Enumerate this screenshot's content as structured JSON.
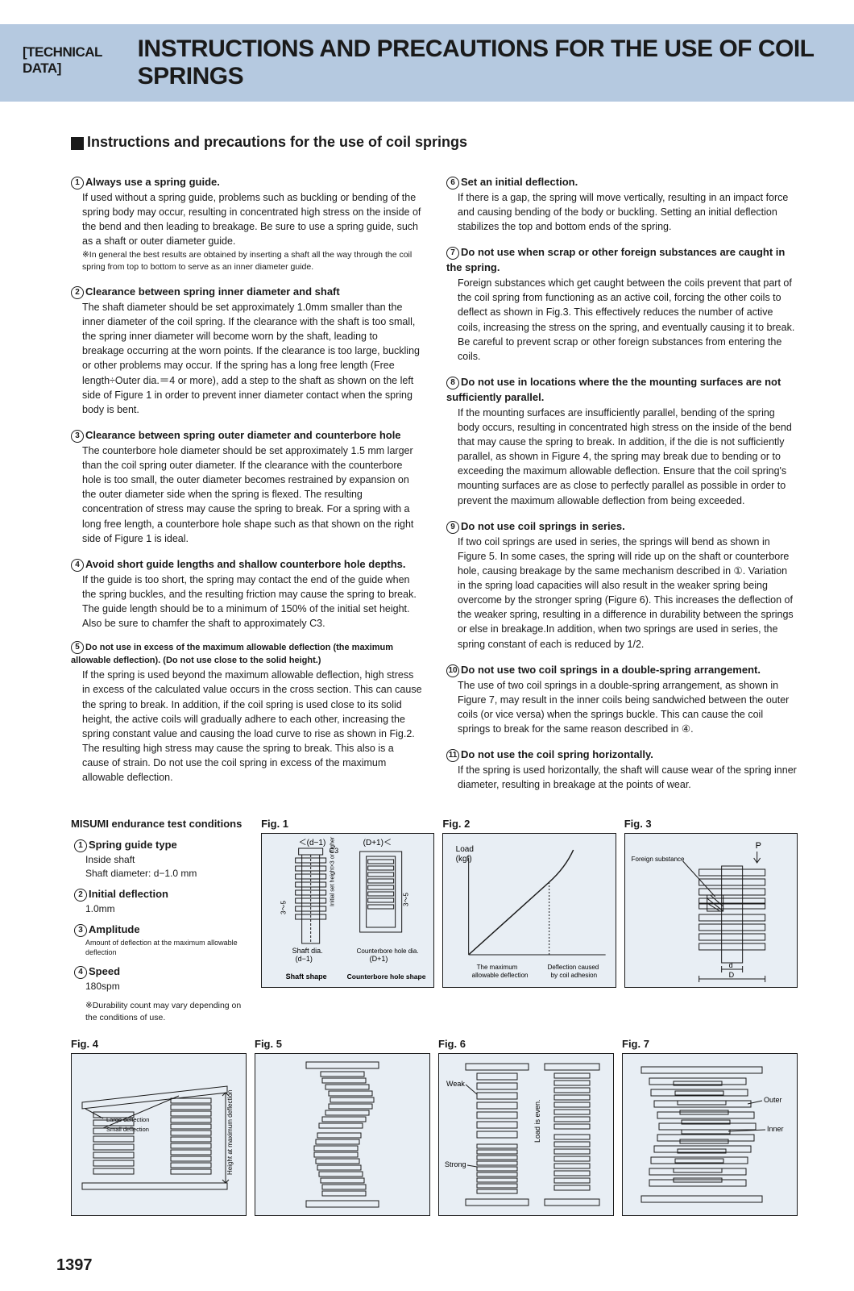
{
  "header": {
    "tag": "[TECHNICAL DATA]",
    "title": "INSTRUCTIONS AND PRECAUTIONS FOR THE USE OF COIL SPRINGS"
  },
  "section_heading": "Instructions and precautions for the use of coil springs",
  "left": [
    {
      "num": "1",
      "title": "Always use a spring guide.",
      "body": "If used without a spring guide, problems such as buckling or bending of the spring body may occur, resulting in concentrated high stress on the inside of the bend and then leading to breakage. Be sure to use a spring guide, such as a shaft or outer diameter guide.",
      "note": "※In general the best results are obtained by inserting a shaft all the way through the coil spring from top to bottom to serve as an inner diameter guide."
    },
    {
      "num": "2",
      "title": "Clearance between spring inner diameter and shaft",
      "body": "The shaft diameter should be set approximately 1.0mm smaller than the inner diameter of the coil spring. If the clearance with the shaft is too small, the spring inner diameter will become worn by the shaft, leading to breakage occurring at the worn points. If the clearance is too large, buckling or other problems may occur. If the spring has a long free length (Free length÷Outer dia.＝4 or more), add a step to the shaft as shown on the left side of Figure 1 in order to prevent inner diameter contact when the spring body is bent."
    },
    {
      "num": "3",
      "title": "Clearance between spring outer diameter and counterbore hole",
      "body": "The counterbore hole diameter should be set approximately 1.5 mm larger than the coil spring outer diameter. If the clearance with the counterbore hole is too small, the outer diameter becomes restrained by expansion on the outer diameter side when the spring is flexed. The resulting concentration of stress may cause the spring to break. For a spring with a long free length, a counterbore hole shape such as that shown on the right side of Figure 1 is ideal."
    },
    {
      "num": "4",
      "title": "Avoid short guide lengths and shallow counterbore hole depths.",
      "body": "If the guide is too short, the spring may contact the end of the guide when the spring buckles, and the resulting friction may cause the spring to break. The guide length should be to a minimum of 150% of the initial set height. Also be sure to chamfer the shaft to approximately C3."
    },
    {
      "num": "5",
      "title": "Do not use in excess of the maximum allowable deflection (the maximum allowable deflection). (Do not use close to the solid height.)",
      "small": true,
      "body": "If the spring is used beyond the maximum allowable deflection, high stress in excess of the calculated value occurs in the cross section. This can cause the spring to break. In addition, if the coil spring is used close to its solid height, the active coils will gradually adhere to each other, increasing the spring constant value and causing the load curve to rise as shown in Fig.2. The resulting high stress may cause the spring to break. This also is a cause of strain. Do not use the coil spring in excess of the maximum allowable deflection."
    }
  ],
  "right": [
    {
      "num": "6",
      "title": "Set an initial deflection.",
      "body": "If there is a gap, the spring will move vertically, resulting in an impact force and causing bending of the body or buckling. Setting an initial deflection stabilizes the top and bottom ends of the spring."
    },
    {
      "num": "7",
      "title": "Do not use when scrap or other foreign substances are caught in the spring.",
      "body": "Foreign substances which get caught between the coils prevent that part of the coil spring from functioning as an active coil, forcing the other coils to deflect as shown in Fig.3. This effectively reduces the number of active coils, increasing the stress on the spring, and eventually causing it to break. Be careful to prevent scrap or other foreign substances from entering the coils."
    },
    {
      "num": "8",
      "title": "Do not use in locations where the the mounting surfaces are not sufficiently parallel.",
      "body": "If the mounting surfaces are insufficiently parallel, bending of the spring body occurs, resulting in concentrated high stress on the inside of the bend that may cause the spring to break. In addition, if the die is not sufficiently parallel, as shown in Figure 4, the spring may break due to bending or to exceeding the maximum allowable deflection. Ensure that the coil spring's mounting surfaces are as close to perfectly parallel as possible in order to prevent the maximum allowable deflection from being exceeded."
    },
    {
      "num": "9",
      "title": "Do not use coil springs in series.",
      "body": "If two coil springs are used in series, the springs will bend as shown in Figure 5. In some cases, the spring will ride up on the shaft or counterbore hole, causing breakage by the same mechanism described in ①. Variation in the spring load capacities will also result in the weaker spring being overcome by the stronger spring (Figure 6). This increases the deflection of the weaker spring, resulting in a difference in durability between the springs or else in breakage.In addition, when two springs are used in series, the spring constant of each is reduced by 1/2."
    },
    {
      "num": "10",
      "title": "Do not use two coil springs in a double-spring arrangement.",
      "body": "The use of two coil springs in a double-spring arrangement, as shown in Figure 7, may result in the inner coils being sandwiched between the outer coils (or vice versa) when the springs buckle. This can cause the coil springs to break for the same reason described in ④."
    },
    {
      "num": "11",
      "title": "Do not use the coil spring horizontally.",
      "body": "If the spring is used horizontally, the shaft will cause wear of the spring inner diameter, resulting in breakage at the points of wear."
    }
  ],
  "conditions": {
    "heading": "MISUMI endurance test conditions",
    "items": [
      {
        "num": "1",
        "title": "Spring guide type",
        "body": "Inside shaft\nShaft diameter: d−1.0 mm"
      },
      {
        "num": "2",
        "title": "Initial deflection",
        "body": "1.0mm"
      },
      {
        "num": "3",
        "title": "Amplitude",
        "body": "Amount of deflection at the maximum allowable deflection"
      },
      {
        "num": "4",
        "title": "Speed",
        "body": "180spm"
      }
    ],
    "note": "※Durability count may vary depending on the conditions of use."
  },
  "figs": {
    "f1": {
      "label": "Fig. 1",
      "top_left": "＜(d−1)",
      "top_right": "(D+1)＜",
      "c3": "C3",
      "vlabel": "Initial set height×3 or higher",
      "range": "3～5",
      "shaft_dia": "Shaft dia.\n(d−1)",
      "cbore_dia": "Counterbore hole dia.\n(D+1)",
      "shaft_shape": "Shaft shape",
      "cbore_shape": "Counterbore hole shape"
    },
    "f2": {
      "label": "Fig. 2",
      "load": "Load\n(kgf)",
      "x1": "The maximum\nallowable deflection",
      "x2": "Deflection caused\nby coil adhesion"
    },
    "f3": {
      "label": "Fig. 3",
      "p": "P",
      "foreign": "Foreign substance",
      "d": "d",
      "D": "D"
    },
    "f4": {
      "label": "Fig. 4",
      "large": "Large deflection",
      "small": "Small deflection",
      "height": "Height at maximum deflection"
    },
    "f5": {
      "label": "Fig. 5"
    },
    "f6": {
      "label": "Fig. 6",
      "weak": "Weak",
      "strong": "Strong",
      "even": "Load is even."
    },
    "f7": {
      "label": "Fig. 7",
      "outer": "Outer",
      "inner": "Inner"
    }
  },
  "page": "1397",
  "colors": {
    "band": "#b5c9e0",
    "figbg": "#e8eef4",
    "line": "#1a1a1a"
  }
}
